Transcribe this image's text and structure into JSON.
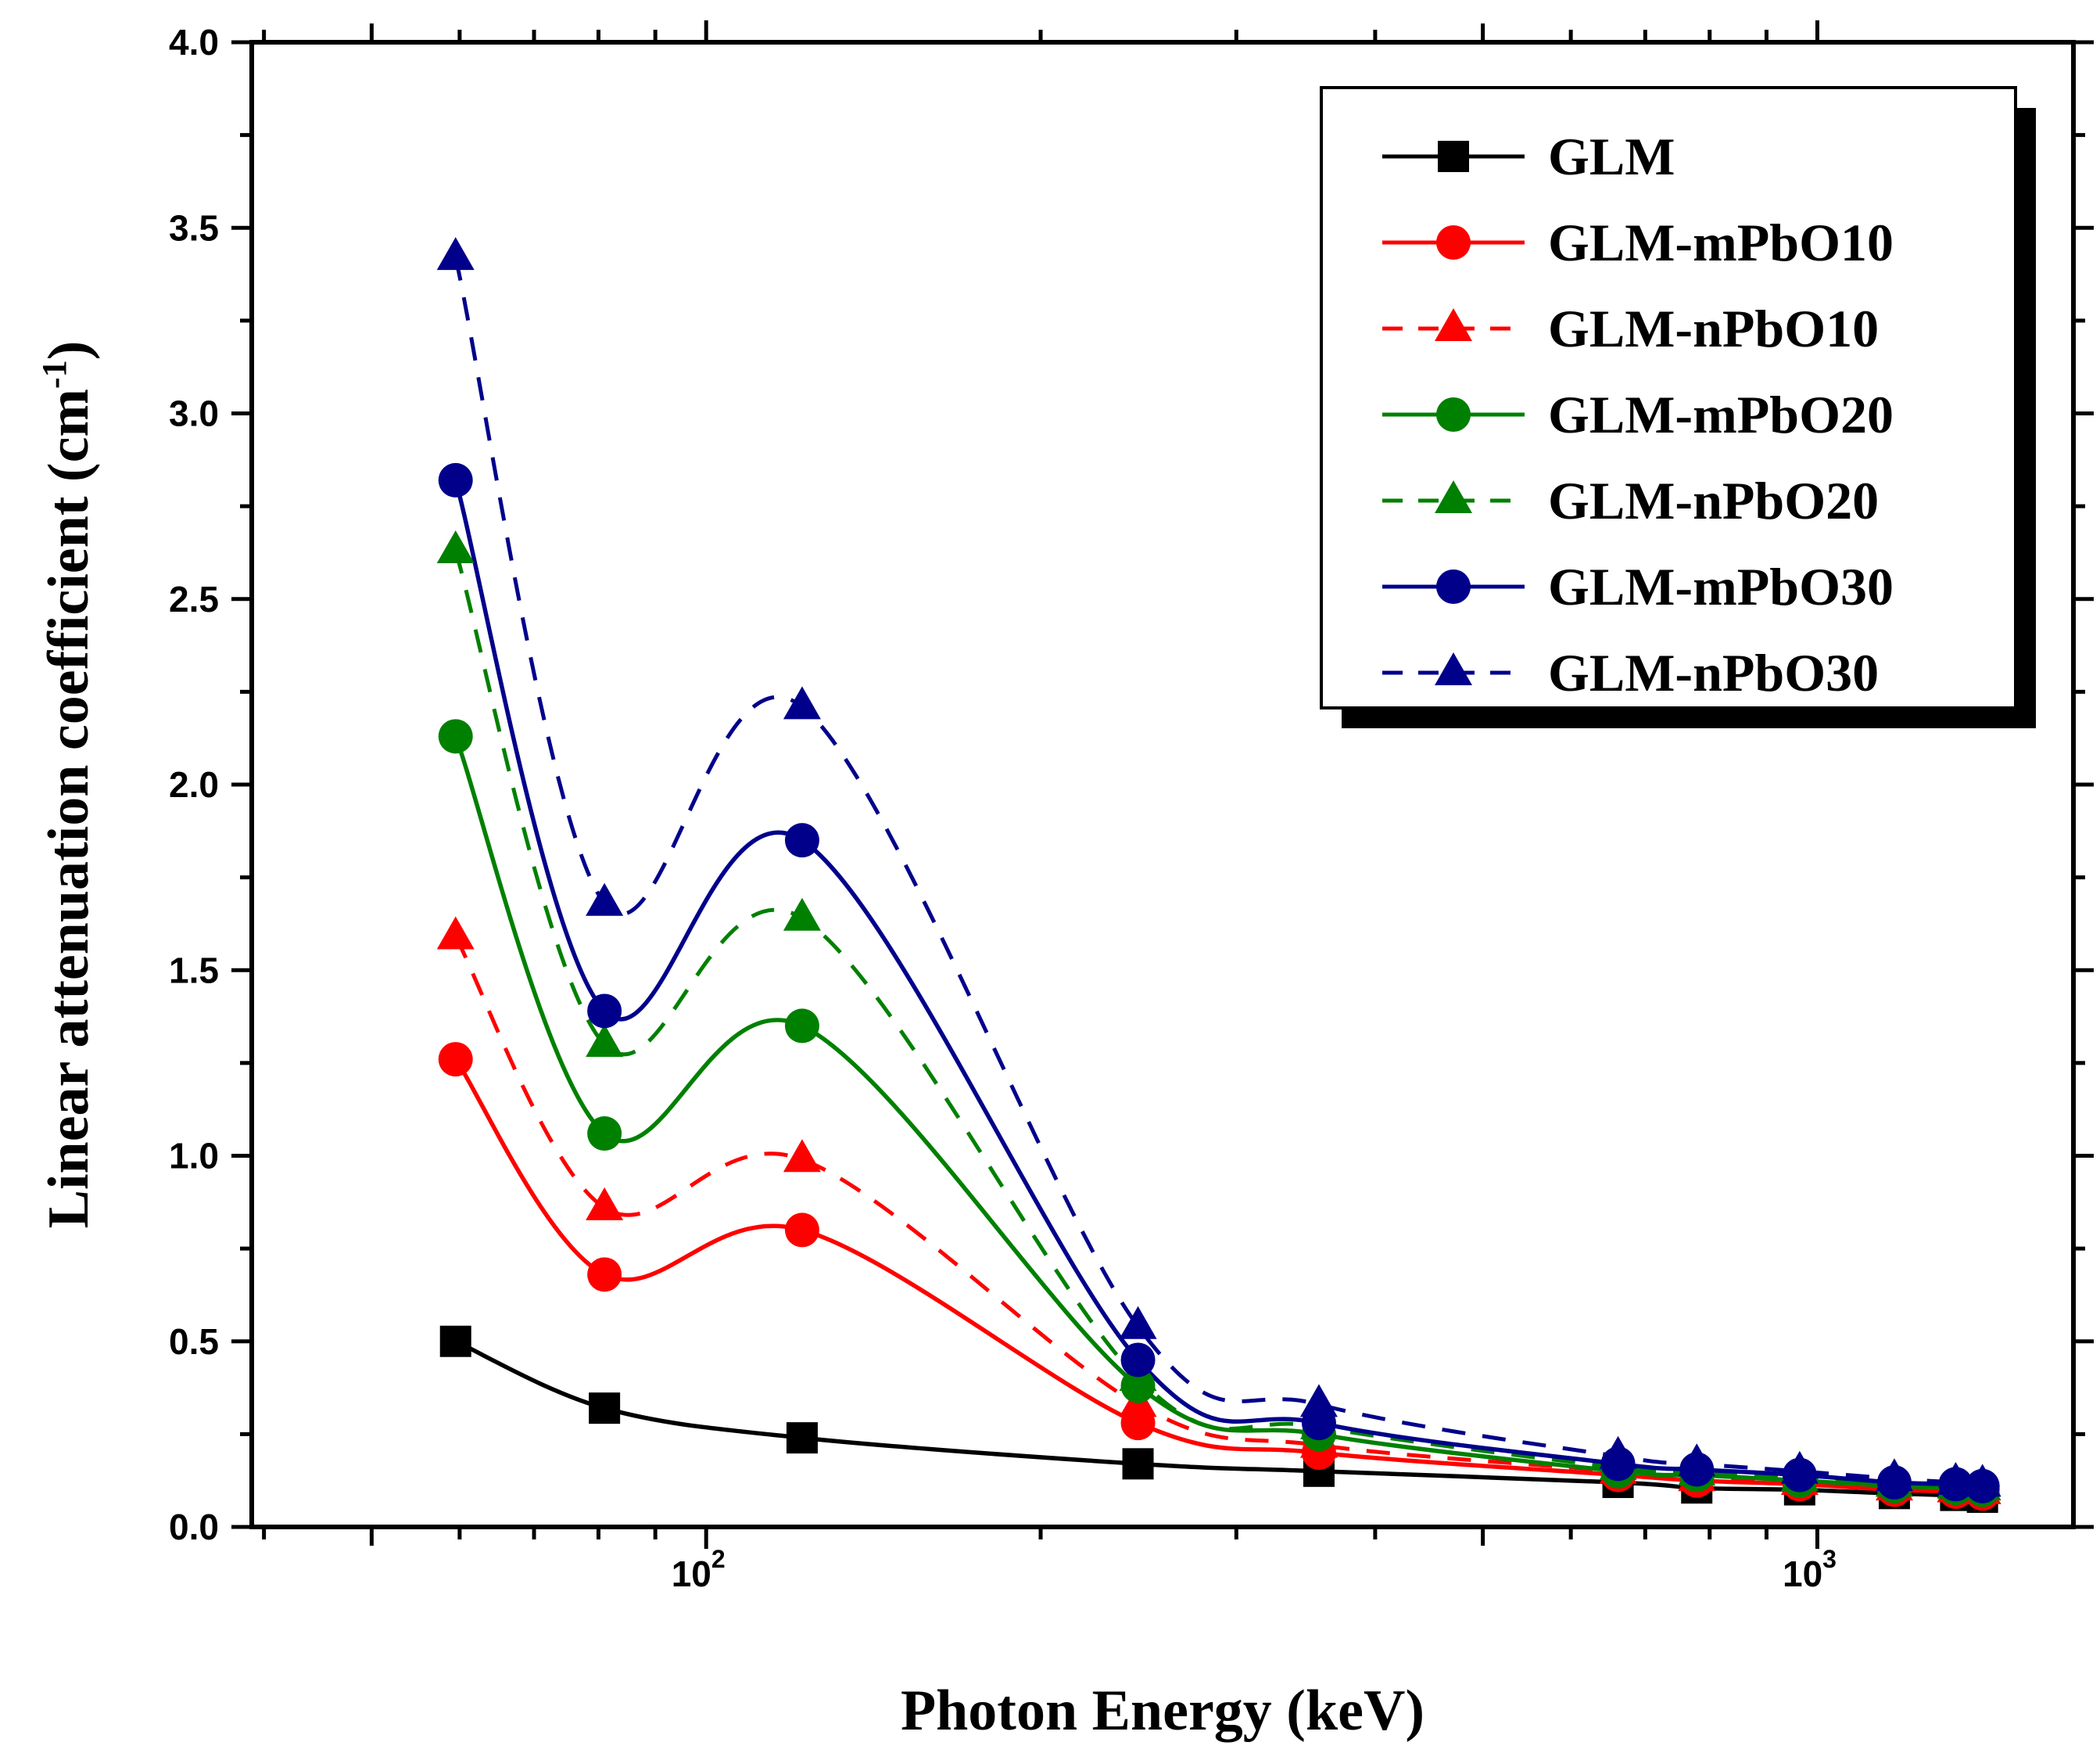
{
  "chart_data": {
    "type": "line",
    "title": "",
    "xlabel": "Photon Energy (keV)",
    "ylabel": "Linear attenuation coefficient (cm",
    "ylabel_superscript": "-1",
    "ylabel_suffix": ")",
    "xscale": "log",
    "xlim": [
      39,
      1700
    ],
    "ylim": [
      0,
      4.0
    ],
    "yticks": [
      "0.0",
      "0.5",
      "1.0",
      "1.5",
      "2.0",
      "2.5",
      "3.0",
      "3.5",
      "4.0"
    ],
    "xtick_labels": [
      {
        "value": 100,
        "base": "10",
        "exp": "2"
      },
      {
        "value": 1000,
        "base": "10",
        "exp": "3"
      }
    ],
    "grid": false,
    "legend_position": "top-right",
    "x": [
      59.5,
      81,
      122,
      244.7,
      356,
      661.7,
      778.9,
      964,
      1173,
      1332,
      1408
    ],
    "series": [
      {
        "name": "GLM",
        "color": "#000000",
        "marker": "square",
        "dashed": false,
        "values": [
          0.5,
          0.32,
          0.24,
          0.17,
          0.15,
          0.12,
          0.105,
          0.1,
          0.09,
          0.085,
          0.08
        ]
      },
      {
        "name": "GLM-mPbO10",
        "color": "#ff0000",
        "marker": "circle",
        "dashed": false,
        "values": [
          1.26,
          0.68,
          0.8,
          0.28,
          0.2,
          0.14,
          0.125,
          0.115,
          0.1,
          0.095,
          0.09
        ]
      },
      {
        "name": "GLM-nPbO10",
        "color": "#ff0000",
        "marker": "triangle",
        "dashed": true,
        "values": [
          1.59,
          0.86,
          0.99,
          0.33,
          0.22,
          0.15,
          0.13,
          0.12,
          0.105,
          0.1,
          0.095
        ]
      },
      {
        "name": "GLM-mPbO20",
        "color": "#008000",
        "marker": "circle",
        "dashed": false,
        "values": [
          2.13,
          1.06,
          1.35,
          0.38,
          0.25,
          0.15,
          0.14,
          0.125,
          0.11,
          0.105,
          0.1
        ]
      },
      {
        "name": "GLM-nPbO20",
        "color": "#008000",
        "marker": "triangle",
        "dashed": true,
        "values": [
          2.63,
          1.3,
          1.64,
          0.4,
          0.27,
          0.16,
          0.145,
          0.13,
          0.115,
          0.11,
          0.105
        ]
      },
      {
        "name": "GLM-mPbO30",
        "color": "#00008b",
        "marker": "circle",
        "dashed": false,
        "values": [
          2.82,
          1.39,
          1.85,
          0.45,
          0.28,
          0.17,
          0.155,
          0.14,
          0.12,
          0.115,
          0.11
        ]
      },
      {
        "name": "GLM-nPbO30",
        "color": "#00008b",
        "marker": "triangle",
        "dashed": true,
        "values": [
          3.42,
          1.68,
          2.21,
          0.54,
          0.33,
          0.19,
          0.17,
          0.15,
          0.13,
          0.12,
          0.115
        ]
      }
    ]
  }
}
